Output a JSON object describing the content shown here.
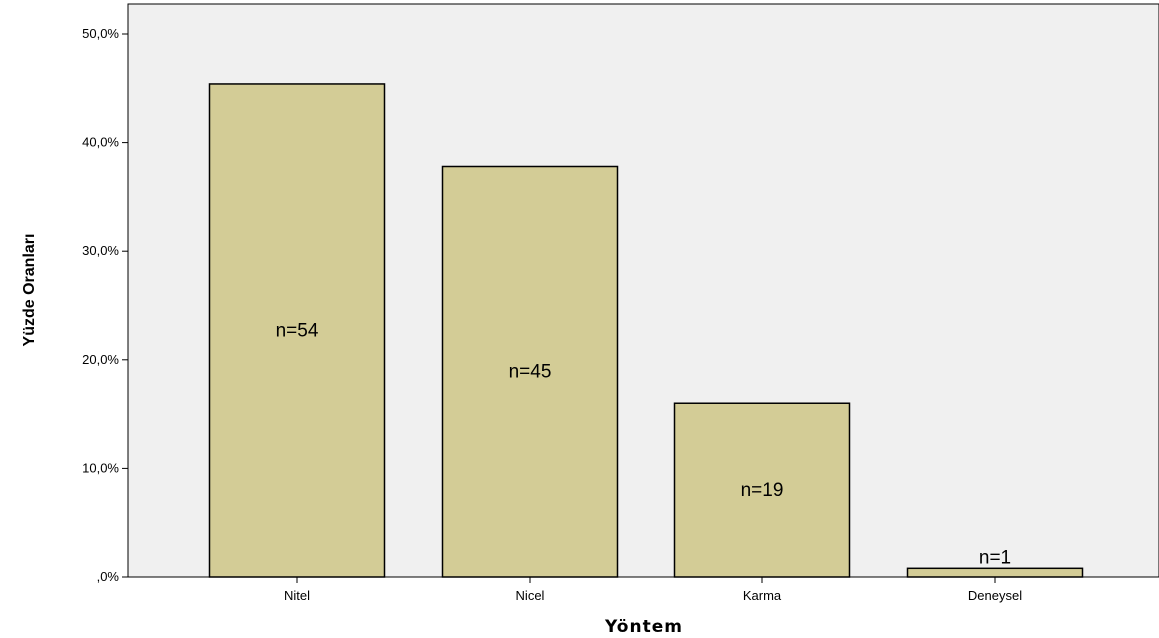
{
  "chart_data": {
    "type": "bar",
    "title": "",
    "xlabel": "Yöntem",
    "ylabel": "Yüzde Oranları",
    "categories": [
      "Nitel",
      "Nicel",
      "Karma",
      "Deneysel"
    ],
    "values": [
      45.4,
      37.8,
      16.0,
      0.8
    ],
    "bar_labels": [
      "n=54",
      "n=45",
      "n=19",
      "n=1"
    ],
    "ylim": [
      0,
      50
    ],
    "yticks": [
      0,
      10,
      20,
      30,
      40,
      50
    ],
    "ytick_labels": [
      ",0%",
      "10,0%",
      "20,0%",
      "30,0%",
      "40,0%",
      "50,0%"
    ],
    "grid": false,
    "legend": "none",
    "colors": {
      "bar_fill": "#d3cc96",
      "bar_stroke": "#000000",
      "plot_background": "#f0f0f0",
      "axis": "#000000"
    }
  }
}
